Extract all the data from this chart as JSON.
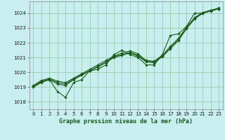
{
  "title": "Graphe pression niveau de la mer (hPa)",
  "bg_color": "#c8eef0",
  "grid_color": "#99ccaa",
  "line_color": "#1a5c1a",
  "marker_color": "#1a5c1a",
  "xlim": [
    -0.5,
    23.5
  ],
  "ylim": [
    1017.5,
    1024.8
  ],
  "xticks": [
    0,
    1,
    2,
    3,
    4,
    5,
    6,
    7,
    8,
    9,
    10,
    11,
    12,
    13,
    14,
    15,
    16,
    17,
    18,
    19,
    20,
    21,
    22,
    23
  ],
  "yticks": [
    1018,
    1019,
    1020,
    1021,
    1022,
    1023,
    1024
  ],
  "line1_x": [
    0,
    1,
    2,
    3,
    4,
    5,
    6,
    7,
    8,
    9,
    10,
    11,
    12,
    13,
    14,
    15,
    16,
    17,
    18,
    19,
    20,
    21,
    22,
    23
  ],
  "line1_y": [
    1019.0,
    1019.4,
    1019.5,
    1018.7,
    1018.3,
    1019.3,
    1019.5,
    1020.1,
    1020.2,
    1020.5,
    1021.2,
    1021.5,
    1021.2,
    1021.0,
    1020.5,
    1020.5,
    1021.2,
    1022.5,
    1022.6,
    1023.1,
    1024.0,
    1024.0,
    1024.2,
    1024.3
  ],
  "line2_x": [
    0,
    1,
    2,
    3,
    4,
    5,
    6,
    7,
    8,
    9,
    10,
    11,
    12,
    13,
    14,
    15,
    16,
    17,
    18,
    19,
    20,
    21,
    22,
    23
  ],
  "line2_y": [
    1019.0,
    1019.3,
    1019.5,
    1019.2,
    1019.1,
    1019.5,
    1019.8,
    1020.1,
    1020.35,
    1020.65,
    1021.0,
    1021.15,
    1021.3,
    1021.1,
    1020.7,
    1020.65,
    1021.05,
    1021.6,
    1022.15,
    1022.95,
    1023.6,
    1024.0,
    1024.15,
    1024.3
  ],
  "line3_x": [
    0,
    1,
    2,
    3,
    4,
    5,
    6,
    7,
    8,
    9,
    10,
    11,
    12,
    13,
    14,
    15,
    16,
    17,
    18,
    19,
    20,
    21,
    22,
    23
  ],
  "line3_y": [
    1019.05,
    1019.35,
    1019.55,
    1019.3,
    1019.2,
    1019.55,
    1019.85,
    1020.1,
    1020.4,
    1020.7,
    1021.05,
    1021.2,
    1021.35,
    1021.15,
    1020.75,
    1020.7,
    1021.1,
    1021.65,
    1022.2,
    1023.0,
    1023.65,
    1024.0,
    1024.15,
    1024.3
  ],
  "line4_x": [
    0,
    1,
    2,
    3,
    4,
    5,
    6,
    7,
    8,
    9,
    10,
    11,
    12,
    13,
    14,
    15,
    16,
    17,
    18,
    19,
    20,
    21,
    22,
    23
  ],
  "line4_y": [
    1019.1,
    1019.45,
    1019.6,
    1019.4,
    1019.3,
    1019.6,
    1019.9,
    1020.2,
    1020.5,
    1020.8,
    1021.1,
    1021.3,
    1021.45,
    1021.25,
    1020.8,
    1020.75,
    1021.15,
    1021.75,
    1022.3,
    1023.05,
    1023.7,
    1024.05,
    1024.2,
    1024.35
  ]
}
